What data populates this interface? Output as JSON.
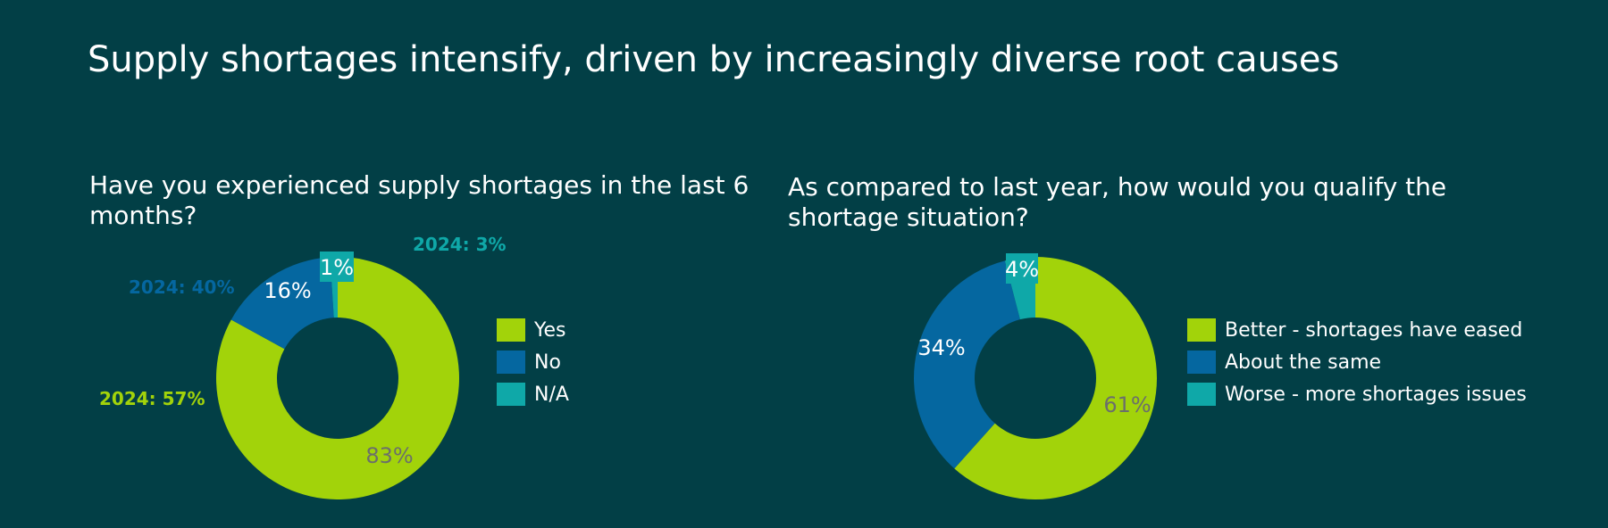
{
  "title": "Supply shortages intensify, driven by increasingly diverse root causes",
  "colors": {
    "background": "#023F46",
    "green": "#A2D30A",
    "blue": "#0567A0",
    "teal": "#0FA8A8"
  },
  "chart_data": [
    {
      "type": "pie",
      "title": "Have you experienced supply shortages in the last 6 months?",
      "categories": [
        "Yes",
        "No",
        "N/A"
      ],
      "values": [
        83,
        16,
        1
      ],
      "value_labels": [
        "83%",
        "16%",
        "1%"
      ],
      "colors": [
        "#A2D30A",
        "#0567A0",
        "#0FA8A8"
      ],
      "annotations": [
        "2024: 57%",
        "2024: 40%",
        "2024: 3%"
      ],
      "annotation_colors": [
        "#A2D30A",
        "#0567A0",
        "#0FA8A8"
      ],
      "legend": [
        "Yes",
        "No",
        "N/A"
      ],
      "legend_position": "right",
      "donut": true
    },
    {
      "type": "pie",
      "title": "As compared to last year, how would you qualify the shortage situation?",
      "categories": [
        "Better - shortages have eased",
        "About the same",
        "Worse - more shortages issues"
      ],
      "values": [
        61,
        34,
        4
      ],
      "value_labels": [
        "61%",
        "34%",
        "4%"
      ],
      "colors": [
        "#A2D30A",
        "#0567A0",
        "#0FA8A8"
      ],
      "legend": [
        "Better - shortages have eased",
        "About the same",
        "Worse - more shortages issues"
      ],
      "legend_position": "right",
      "donut": true
    }
  ]
}
